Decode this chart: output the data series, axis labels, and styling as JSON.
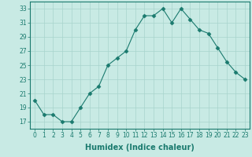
{
  "xlabel": "Humidex (Indice chaleur)",
  "x_values": [
    0,
    1,
    2,
    3,
    4,
    5,
    6,
    7,
    8,
    9,
    10,
    11,
    12,
    13,
    14,
    15,
    16,
    17,
    18,
    19,
    20,
    21,
    22,
    23
  ],
  "y_values": [
    20,
    18,
    18,
    17,
    17,
    19,
    21,
    22,
    25,
    26,
    27,
    30,
    32,
    32,
    33,
    31,
    33,
    31.5,
    30,
    29.5,
    27.5,
    25.5,
    24,
    23
  ],
  "line_color": "#1a7a6e",
  "marker": "D",
  "marker_size": 2.5,
  "bg_color": "#c8eae4",
  "grid_color": "#a8d4cc",
  "ylim": [
    16,
    34
  ],
  "xlim": [
    -0.5,
    23.5
  ],
  "yticks": [
    17,
    19,
    21,
    23,
    25,
    27,
    29,
    31,
    33
  ],
  "xticks": [
    0,
    1,
    2,
    3,
    4,
    5,
    6,
    7,
    8,
    9,
    10,
    11,
    12,
    13,
    14,
    15,
    16,
    17,
    18,
    19,
    20,
    21,
    22,
    23
  ],
  "tick_fontsize": 5.5,
  "xlabel_fontsize": 7.0
}
